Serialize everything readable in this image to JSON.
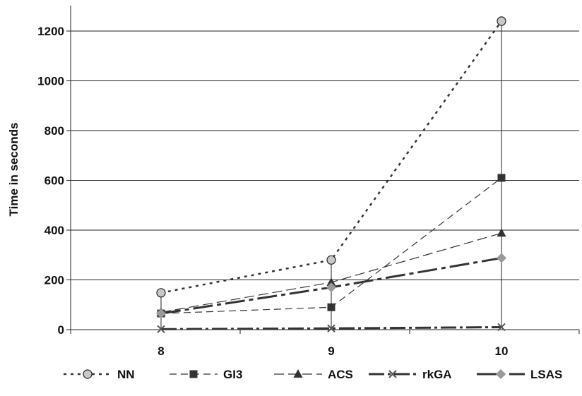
{
  "chart_data": {
    "type": "line",
    "title": "",
    "xlabel": "",
    "ylabel": "Time in seconds",
    "categories": [
      "8",
      "9",
      "10"
    ],
    "ylim": [
      0,
      1300
    ],
    "yticks": [
      0,
      200,
      400,
      600,
      800,
      1000,
      1200
    ],
    "grid": true,
    "legend_position": "bottom",
    "series": [
      {
        "name": "NN",
        "values": [
          148,
          280,
          1240
        ],
        "marker": "circle",
        "color": "#333333",
        "marker_color": "#c8c8c8",
        "dash": "4,6"
      },
      {
        "name": "GI3",
        "values": [
          65,
          90,
          610
        ],
        "marker": "square",
        "color": "#333333",
        "marker_color": "#333333",
        "dash": "10,6"
      },
      {
        "name": "ACS",
        "values": [
          70,
          190,
          388
        ],
        "marker": "triangle",
        "color": "#333333",
        "marker_color": "#333333",
        "dash": "14,6"
      },
      {
        "name": "rkGA",
        "values": [
          2,
          5,
          10
        ],
        "marker": "x",
        "color": "#333333",
        "marker_color": "#555555",
        "dash": "22,5,4,5"
      },
      {
        "name": "LSAS",
        "values": [
          65,
          170,
          288
        ],
        "marker": "diamond",
        "color": "#333333",
        "marker_color": "#999999",
        "dash": "28,6,6,6"
      }
    ],
    "drop_lines": true
  }
}
